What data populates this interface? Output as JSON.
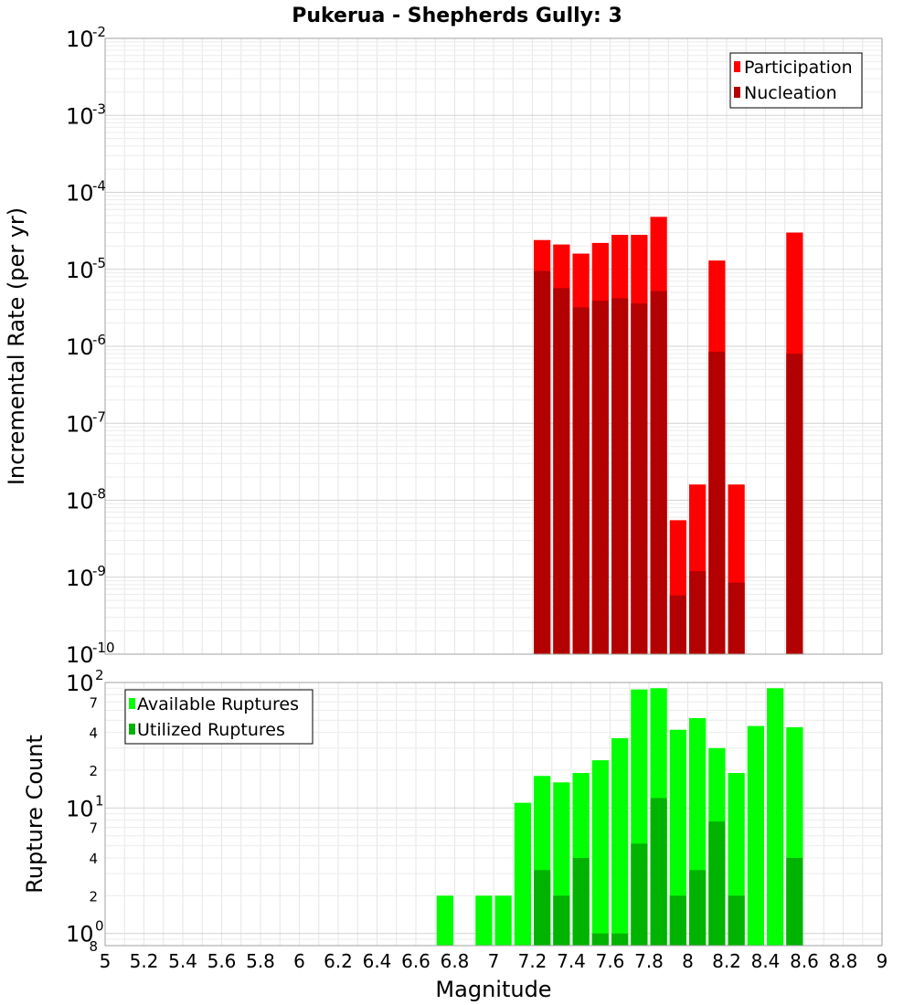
{
  "chart_data": [
    {
      "type": "bar",
      "title": "Pukerua - Shepherds Gully: 3",
      "xlabel": "",
      "ylabel": "Incremental Rate (per yr)",
      "xlim": [
        5,
        9
      ],
      "ylim": [
        1e-10,
        0.01
      ],
      "yscale": "log",
      "grid": true,
      "legend_position": "top-right",
      "bin_width": 0.1,
      "y_ticks": [
        {
          "base": "10",
          "exp": "-2"
        },
        {
          "base": "10",
          "exp": "-3"
        },
        {
          "base": "10",
          "exp": "-4"
        },
        {
          "base": "10",
          "exp": "-5"
        },
        {
          "base": "10",
          "exp": "-6"
        },
        {
          "base": "10",
          "exp": "-7"
        },
        {
          "base": "10",
          "exp": "-8"
        },
        {
          "base": "10",
          "exp": "-9"
        },
        {
          "base": "10",
          "exp": "-10"
        }
      ],
      "series": [
        {
          "name": "Participation",
          "color": "#ff0000",
          "x": [
            7.25,
            7.35,
            7.45,
            7.55,
            7.65,
            7.75,
            7.85,
            7.95,
            8.05,
            8.15,
            8.25,
            8.55
          ],
          "values": [
            2.4e-05,
            2.1e-05,
            1.6e-05,
            2.2e-05,
            2.8e-05,
            2.8e-05,
            4.8e-05,
            5.5e-09,
            1.6e-08,
            1.3e-05,
            1.6e-08,
            3e-05
          ]
        },
        {
          "name": "Nucleation",
          "color": "#b30000",
          "x": [
            7.25,
            7.35,
            7.45,
            7.55,
            7.65,
            7.75,
            7.85,
            7.95,
            8.05,
            8.15,
            8.25,
            8.55
          ],
          "values": [
            9.5e-06,
            5.7e-06,
            3.2e-06,
            3.9e-06,
            4.2e-06,
            3.6e-06,
            5.2e-06,
            5.8e-10,
            1.2e-09,
            8.5e-07,
            8.5e-10,
            8e-07
          ]
        }
      ]
    },
    {
      "type": "bar",
      "title": "",
      "xlabel": "Magnitude",
      "ylabel": "Rupture Count",
      "xlim": [
        5,
        9
      ],
      "ylim": [
        0.8,
        100
      ],
      "yscale": "log",
      "grid": true,
      "legend_position": "top-left",
      "bin_width": 0.1,
      "x_ticks": [
        "5",
        "5.2",
        "5.4",
        "5.6",
        "5.8",
        "6",
        "6.2",
        "6.4",
        "6.6",
        "6.8",
        "7",
        "7.2",
        "7.4",
        "7.6",
        "7.8",
        "8",
        "8.2",
        "8.4",
        "8.6",
        "8.8",
        "9"
      ],
      "y_major_ticks": [
        {
          "base": "10",
          "exp": "2",
          "value": 100
        },
        {
          "base": "10",
          "exp": "1",
          "value": 10
        },
        {
          "base": "10",
          "exp": "0",
          "value": 1
        }
      ],
      "y_minor_ticks": [
        {
          "label": "7",
          "value": 70
        },
        {
          "label": "4",
          "value": 40
        },
        {
          "label": "2",
          "value": 20
        },
        {
          "label": "7",
          "value": 7
        },
        {
          "label": "4",
          "value": 4
        },
        {
          "label": "2",
          "value": 2
        },
        {
          "label": "8",
          "value": 0.8
        }
      ],
      "series": [
        {
          "name": "Available Ruptures",
          "color": "#00ff00",
          "x": [
            6.75,
            6.95,
            7.05,
            7.15,
            7.25,
            7.35,
            7.45,
            7.55,
            7.65,
            7.75,
            7.85,
            7.95,
            8.05,
            8.15,
            8.25,
            8.35,
            8.45,
            8.55
          ],
          "values": [
            2,
            2,
            2,
            11,
            18,
            16,
            19,
            24,
            36,
            88,
            90,
            42,
            52,
            30,
            19,
            45,
            90,
            44
          ]
        },
        {
          "name": "Utilized Ruptures",
          "color": "#00b300",
          "x": [
            7.25,
            7.35,
            7.45,
            7.55,
            7.65,
            7.75,
            7.85,
            7.95,
            8.05,
            8.15,
            8.25,
            8.55
          ],
          "values": [
            3.2,
            2,
            4,
            1,
            1,
            5.2,
            12,
            2,
            3.2,
            7.8,
            2,
            4
          ]
        }
      ]
    }
  ]
}
